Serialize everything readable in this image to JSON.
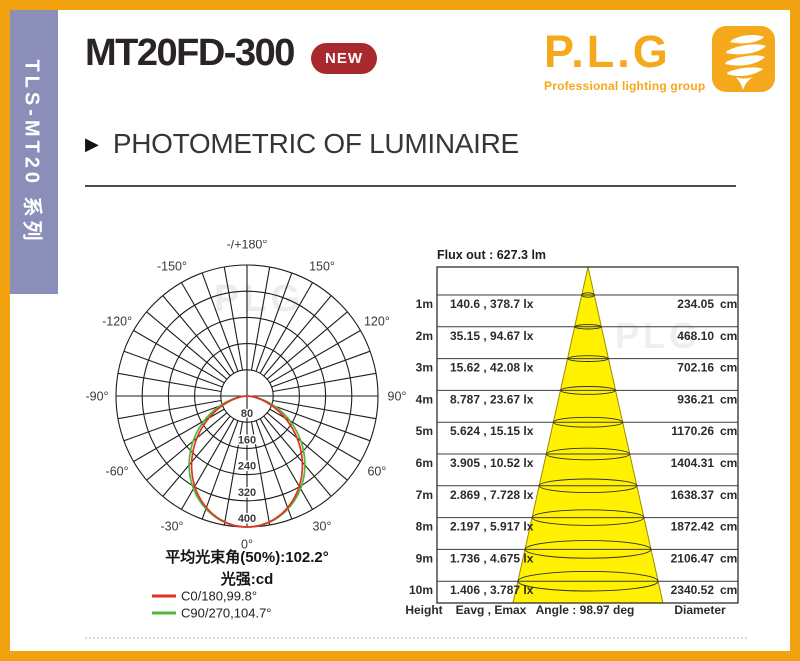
{
  "sidebar": {
    "label": "TLS-MT20 系列"
  },
  "header": {
    "model": "MT20FD-300",
    "badge": "NEW"
  },
  "logo": {
    "name": "P.L.G",
    "tagline": "Professional lighting group"
  },
  "section": {
    "title": "PHOTOMETRIC OF LUMINAIRE"
  },
  "colors": {
    "frame_orange": "#f2a20e",
    "brand_orange": "#f6a81c",
    "sidebar_purple": "#8a8eb8",
    "badge_red": "#a92a2e",
    "cone_yellow": "#fff100"
  },
  "chart_data": [
    {
      "type": "line",
      "subtype": "polar-intensity-curve",
      "title": "平均光束角(50%):102.2°",
      "unit_label": "光强:cd",
      "radial_ticks": [
        80,
        160,
        240,
        320,
        400
      ],
      "radial_max": 400,
      "grid": "polar, rings every 80 cd, spokes every 10 deg",
      "legend_position": "bottom",
      "watermark": "PLG",
      "angle_ticks": [
        {
          "label": "0°",
          "deg": 0
        },
        {
          "label": "30°",
          "deg": 30
        },
        {
          "label": "60°",
          "deg": 60
        },
        {
          "label": "90°",
          "deg": 90
        },
        {
          "label": "120°",
          "deg": 120
        },
        {
          "label": "150°",
          "deg": 150
        },
        {
          "label": "-/+180°",
          "deg": 180
        },
        {
          "label": "-150°",
          "deg": -150
        },
        {
          "label": "-120°",
          "deg": -120
        },
        {
          "label": "-90°",
          "deg": -90
        },
        {
          "label": "-60°",
          "deg": -60
        },
        {
          "label": "-30°",
          "deg": -30
        }
      ],
      "series": [
        {
          "name": "C0/180,99.8°",
          "plane": "C0/180",
          "beam_angle_deg": 99.8,
          "max_cd": 400,
          "color": "#e23122"
        },
        {
          "name": "C90/270,104.7°",
          "plane": "C90/270",
          "beam_angle_deg": 104.7,
          "max_cd": 400,
          "color": "#54b43c"
        }
      ]
    },
    {
      "type": "table",
      "subtype": "cone-diagram",
      "header": "Flux out : 627.3 lm",
      "angle_label": "Angle : 98.97 deg",
      "unit_lx": "lx",
      "unit_cm": "cm",
      "watermark": "PLG",
      "footer": {
        "height": "Height",
        "eavg_emax": "Eavg , Emax",
        "diameter": "Diameter"
      },
      "rows": [
        {
          "height": "1m",
          "eavg": "140.6",
          "emax": "378.7",
          "diameter": "234.05"
        },
        {
          "height": "2m",
          "eavg": "35.15",
          "emax": "94.67",
          "diameter": "468.10"
        },
        {
          "height": "3m",
          "eavg": "15.62",
          "emax": "42.08",
          "diameter": "702.16"
        },
        {
          "height": "4m",
          "eavg": "8.787",
          "emax": "23.67",
          "diameter": "936.21"
        },
        {
          "height": "5m",
          "eavg": "5.624",
          "emax": "15.15",
          "diameter": "1170.26"
        },
        {
          "height": "6m",
          "eavg": "3.905",
          "emax": "10.52",
          "diameter": "1404.31"
        },
        {
          "height": "7m",
          "eavg": "2.869",
          "emax": "7.728",
          "diameter": "1638.37"
        },
        {
          "height": "8m",
          "eavg": "2.197",
          "emax": "5.917",
          "diameter": "1872.42"
        },
        {
          "height": "9m",
          "eavg": "1.736",
          "emax": "4.675",
          "diameter": "2106.47"
        },
        {
          "height": "10m",
          "eavg": "1.406",
          "emax": "3.787",
          "diameter": "2340.52"
        }
      ]
    }
  ]
}
